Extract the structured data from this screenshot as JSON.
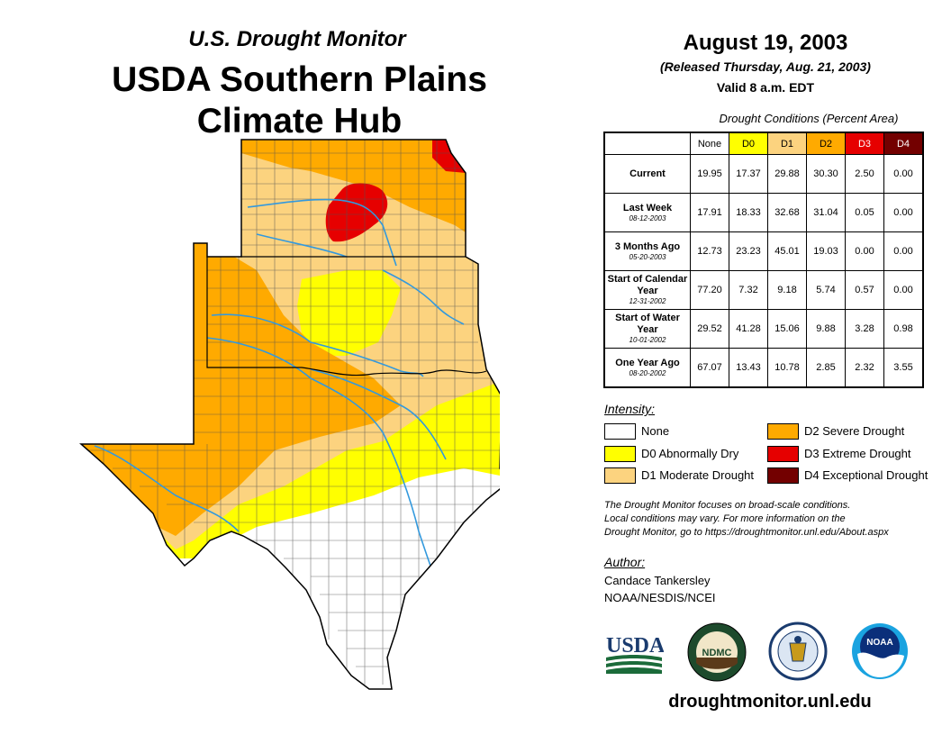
{
  "header": {
    "subtitle": "U.S. Drought Monitor",
    "title_line1": "USDA Southern Plains",
    "title_line2": "Climate Hub",
    "date": "August 19, 2003",
    "released": "(Released Thursday, Aug. 21, 2003)",
    "valid": "Valid 8 a.m. EDT"
  },
  "table": {
    "caption": "Drought Conditions (Percent Area)",
    "columns": [
      {
        "label": "None",
        "color": "#ffffff",
        "text": "#000000"
      },
      {
        "label": "D0",
        "color": "#ffff00",
        "text": "#000000"
      },
      {
        "label": "D1",
        "color": "#fcd37f",
        "text": "#000000"
      },
      {
        "label": "D2",
        "color": "#ffaa00",
        "text": "#000000"
      },
      {
        "label": "D3",
        "color": "#e60000",
        "text": "#ffffff"
      },
      {
        "label": "D4",
        "color": "#730000",
        "text": "#ffffff"
      }
    ],
    "rows": [
      {
        "label": "Current",
        "date": "",
        "values": [
          "19.95",
          "17.37",
          "29.88",
          "30.30",
          "2.50",
          "0.00"
        ]
      },
      {
        "label": "Last Week",
        "date": "08-12-2003",
        "values": [
          "17.91",
          "18.33",
          "32.68",
          "31.04",
          "0.05",
          "0.00"
        ]
      },
      {
        "label": "3 Months Ago",
        "date": "05-20-2003",
        "values": [
          "12.73",
          "23.23",
          "45.01",
          "19.03",
          "0.00",
          "0.00"
        ]
      },
      {
        "label": "Start of Calendar Year",
        "date": "12-31-2002",
        "values": [
          "77.20",
          "7.32",
          "9.18",
          "5.74",
          "0.57",
          "0.00"
        ]
      },
      {
        "label": "Start of Water Year",
        "date": "10-01-2002",
        "values": [
          "29.52",
          "41.28",
          "15.06",
          "9.88",
          "3.28",
          "0.98"
        ]
      },
      {
        "label": "One Year Ago",
        "date": "08-20-2002",
        "values": [
          "67.07",
          "13.43",
          "10.78",
          "2.85",
          "2.32",
          "3.55"
        ]
      }
    ]
  },
  "legend": {
    "title": "Intensity:",
    "items": [
      {
        "label": "None",
        "color": "#ffffff"
      },
      {
        "label": "D0 Abnormally Dry",
        "color": "#ffff00"
      },
      {
        "label": "D1 Moderate Drought",
        "color": "#fcd37f"
      },
      {
        "label": "D2 Severe Drought",
        "color": "#ffaa00"
      },
      {
        "label": "D3 Extreme Drought",
        "color": "#e60000"
      },
      {
        "label": "D4 Exceptional Drought",
        "color": "#730000"
      }
    ]
  },
  "note": {
    "line1": "The Drought Monitor focuses on broad-scale conditions.",
    "line2": "Local conditions may vary. For more information on the",
    "line3": "Drought Monitor, go to https://droughtmonitor.unl.edu/About.aspx"
  },
  "author": {
    "title": "Author:",
    "name": "Candace Tankersley",
    "org": "NOAA/NESDIS/NCEI"
  },
  "logos": {
    "usda": "USDA",
    "ndmc": "NDMC",
    "noaa": "NOAA"
  },
  "footer": {
    "site": "droughtmonitor.unl.edu"
  }
}
